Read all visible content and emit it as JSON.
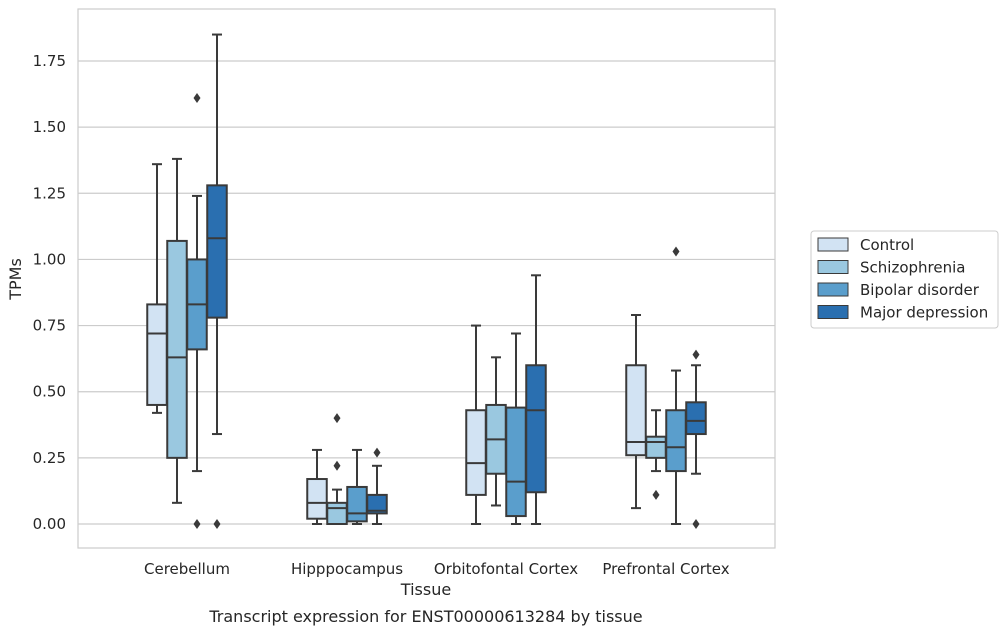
{
  "chart_data": {
    "type": "box",
    "title": "",
    "caption": "Transcript expression for ENST00000613284 by tissue",
    "xlabel": "Tissue",
    "ylabel": "TPMs",
    "ylim": [
      -0.09,
      1.88
    ],
    "yticks": [
      "0.00",
      "0.25",
      "0.50",
      "0.75",
      "1.00",
      "1.25",
      "1.50",
      "1.75"
    ],
    "ytick_values": [
      0,
      0.25,
      0.5,
      0.75,
      1.0,
      1.25,
      1.5,
      1.75
    ],
    "grid": true,
    "legend_position": "right",
    "categories": [
      "Cerebellum",
      "Hipppocampus",
      "Orbitofontal Cortex",
      "Prefrontal Cortex"
    ],
    "series": [
      {
        "name": "Control",
        "color": "#d2e3f3",
        "boxes": [
          {
            "whislo": 0.42,
            "q1": 0.45,
            "med": 0.72,
            "q3": 0.83,
            "whishi": 1.36,
            "fliers": []
          },
          {
            "whislo": 0.0,
            "q1": 0.02,
            "med": 0.08,
            "q3": 0.17,
            "whishi": 0.28,
            "fliers": []
          },
          {
            "whislo": 0.0,
            "q1": 0.11,
            "med": 0.23,
            "q3": 0.43,
            "whishi": 0.75,
            "fliers": []
          },
          {
            "whislo": 0.06,
            "q1": 0.26,
            "med": 0.31,
            "q3": 0.6,
            "whishi": 0.79,
            "fliers": []
          }
        ]
      },
      {
        "name": "Schizophrenia",
        "color": "#9ac8e0",
        "boxes": [
          {
            "whislo": 0.08,
            "q1": 0.25,
            "med": 0.63,
            "q3": 1.07,
            "whishi": 1.38,
            "fliers": []
          },
          {
            "whislo": 0.0,
            "q1": 0.0,
            "med": 0.06,
            "q3": 0.08,
            "whishi": 0.13,
            "fliers": [
              0.22,
              0.4
            ]
          },
          {
            "whislo": 0.07,
            "q1": 0.19,
            "med": 0.32,
            "q3": 0.45,
            "whishi": 0.63,
            "fliers": []
          },
          {
            "whislo": 0.2,
            "q1": 0.25,
            "med": 0.31,
            "q3": 0.33,
            "whishi": 0.43,
            "fliers": [
              0.11
            ]
          }
        ]
      },
      {
        "name": "Bipolar disorder",
        "color": "#5a9ecc",
        "boxes": [
          {
            "whislo": 0.2,
            "q1": 0.66,
            "med": 0.83,
            "q3": 1.0,
            "whishi": 1.24,
            "fliers": [
              0.0,
              1.61
            ]
          },
          {
            "whislo": 0.0,
            "q1": 0.01,
            "med": 0.04,
            "q3": 0.14,
            "whishi": 0.28,
            "fliers": []
          },
          {
            "whislo": 0.0,
            "q1": 0.03,
            "med": 0.16,
            "q3": 0.44,
            "whishi": 0.72,
            "fliers": []
          },
          {
            "whislo": 0.0,
            "q1": 0.2,
            "med": 0.29,
            "q3": 0.43,
            "whishi": 0.58,
            "fliers": [
              1.03
            ]
          }
        ]
      },
      {
        "name": "Major depression",
        "color": "#2a6fb0",
        "boxes": [
          {
            "whislo": 0.34,
            "q1": 0.78,
            "med": 1.08,
            "q3": 1.28,
            "whishi": 1.85,
            "fliers": [
              0.0
            ]
          },
          {
            "whislo": 0.0,
            "q1": 0.04,
            "med": 0.05,
            "q3": 0.11,
            "whishi": 0.22,
            "fliers": [
              0.27
            ]
          },
          {
            "whislo": 0.0,
            "q1": 0.12,
            "med": 0.43,
            "q3": 0.6,
            "whishi": 0.94,
            "fliers": []
          },
          {
            "whislo": 0.19,
            "q1": 0.34,
            "med": 0.39,
            "q3": 0.46,
            "whishi": 0.6,
            "fliers": [
              0.0,
              0.64
            ]
          }
        ]
      }
    ]
  }
}
